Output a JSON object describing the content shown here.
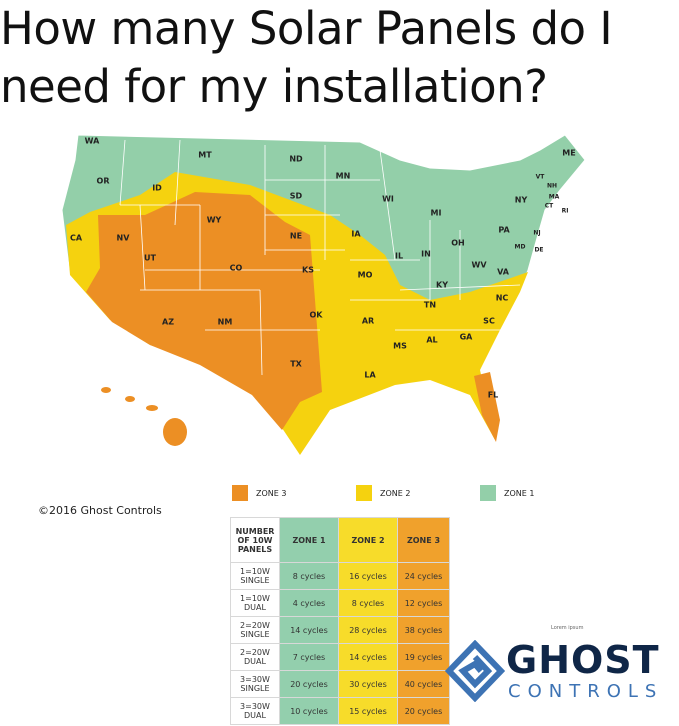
{
  "title": "How many Solar Panels do I need for my installation?",
  "title_lines": [
    "How many Solar Panels do I",
    "need for my installation?"
  ],
  "colors": {
    "zone1": "#93cfa9",
    "zone2": "#f5d20f",
    "zone3": "#ec8f24"
  },
  "states": [
    "WA",
    "OR",
    "CA",
    "ID",
    "NV",
    "MT",
    "WY",
    "UT",
    "AZ",
    "CO",
    "NM",
    "ND",
    "SD",
    "NE",
    "KS",
    "OK",
    "TX",
    "MN",
    "IA",
    "MO",
    "AR",
    "LA",
    "WI",
    "IL",
    "MI",
    "IN",
    "OH",
    "KY",
    "TN",
    "MS",
    "AL",
    "GA",
    "FL",
    "SC",
    "NC",
    "VA",
    "WV",
    "PA",
    "NY",
    "NJ",
    "MD",
    "DE",
    "CT",
    "RI",
    "MA",
    "NH",
    "VT",
    "ME"
  ],
  "legend": [
    {
      "label": "ZONE 3",
      "color": "#ec8f24"
    },
    {
      "label": "ZONE 2",
      "color": "#f5d20f"
    },
    {
      "label": "ZONE 1",
      "color": "#93cfa9"
    }
  ],
  "copyright": "©2016 Ghost Controls",
  "table": {
    "header": [
      "NUMBER OF 10W PANELS",
      "ZONE 1",
      "ZONE 2",
      "ZONE 3"
    ],
    "rows": [
      [
        "1=10W SINGLE",
        "8 cycles",
        "16 cycles",
        "24 cycles"
      ],
      [
        "1=10W DUAL",
        "4 cycles",
        "8 cycles",
        "12 cycles"
      ],
      [
        "2=20W SINGLE",
        "14 cycles",
        "28 cycles",
        "38 cycles"
      ],
      [
        "2=20W DUAL",
        "7 cycles",
        "14 cycles",
        "19 cycles"
      ],
      [
        "3=30W SINGLE",
        "20 cycles",
        "30 cycles",
        "40 cycles"
      ],
      [
        "3=30W DUAL",
        "10 cycles",
        "15 cycles",
        "20 cycles"
      ]
    ]
  },
  "logo": {
    "word1": "GHOST",
    "word2": "CONTROLS",
    "overlay": "Lorem ipsum"
  }
}
